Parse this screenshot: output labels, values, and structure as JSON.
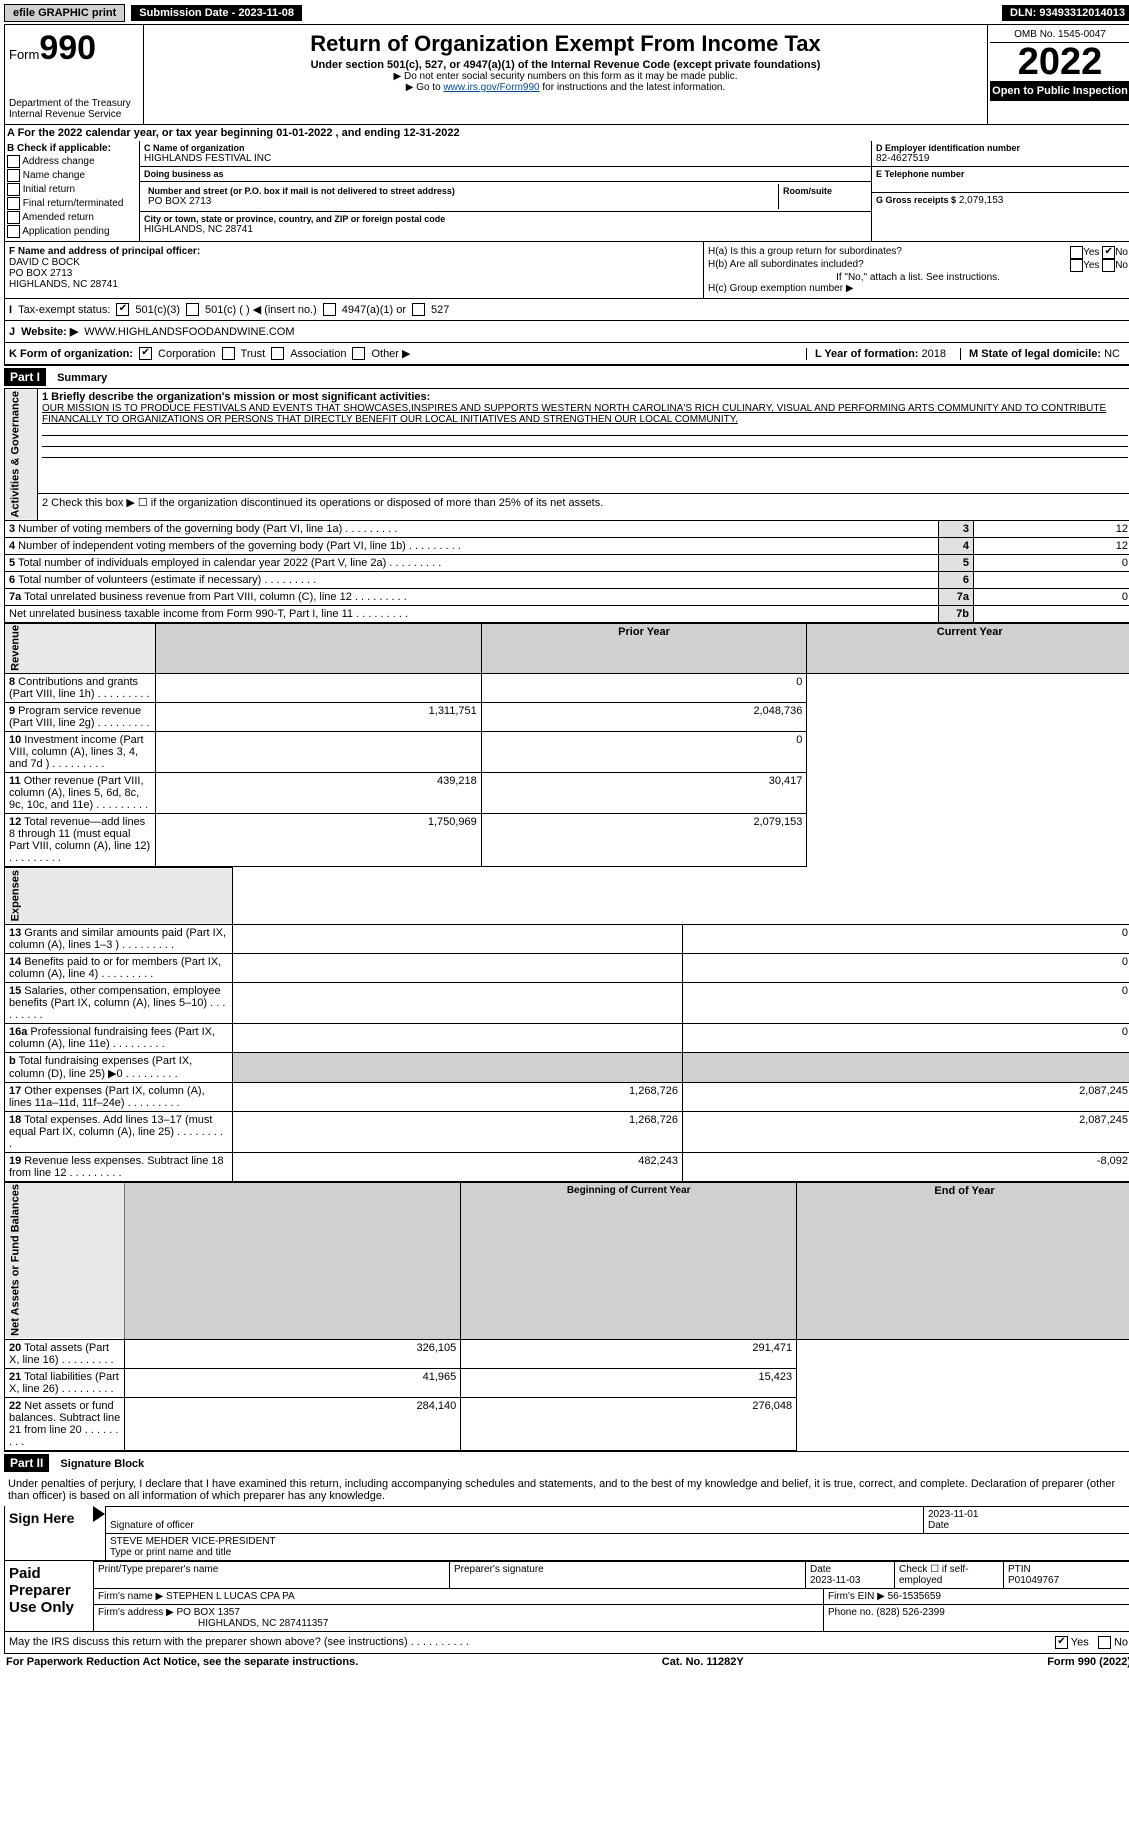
{
  "topbar": {
    "efile": "efile GRAPHIC print",
    "submission": "Submission Date - 2023-11-08",
    "dln": "DLN: 93493312014013"
  },
  "header": {
    "form_prefix": "Form",
    "form_number": "990",
    "title": "Return of Organization Exempt From Income Tax",
    "subtitle": "Under section 501(c), 527, or 4947(a)(1) of the Internal Revenue Code (except private foundations)",
    "note1": "▶ Do not enter social security numbers on this form as it may be made public.",
    "note2_prefix": "▶ Go to ",
    "note2_link": "www.irs.gov/Form990",
    "note2_suffix": " for instructions and the latest information.",
    "dept": "Department of the Treasury",
    "irs": "Internal Revenue Service",
    "omb": "OMB No. 1545-0047",
    "year": "2022",
    "open_public": "Open to Public Inspection"
  },
  "line_a": "A For the 2022 calendar year, or tax year beginning 01-01-2022    , and ending 12-31-2022",
  "section_b": {
    "check_label": "B Check if applicable:",
    "options": [
      "Address change",
      "Name change",
      "Initial return",
      "Final return/terminated",
      "Amended return",
      "Application pending"
    ],
    "c_label": "C Name of organization",
    "c_name": "HIGHLANDS FESTIVAL INC",
    "dba_label": "Doing business as",
    "street_label": "Number and street (or P.O. box if mail is not delivered to street address)",
    "room_label": "Room/suite",
    "street": "PO BOX 2713",
    "city_label": "City or town, state or province, country, and ZIP or foreign postal code",
    "city": "HIGHLANDS, NC  28741",
    "d_label": "D Employer identification number",
    "d_ein": "82-4627519",
    "e_label": "E Telephone number",
    "g_label": "G Gross receipts $",
    "g_val": "2,079,153",
    "f_label": "F  Name and address of principal officer:",
    "f_name": "DAVID C BOCK",
    "f_addr1": "PO BOX 2713",
    "f_addr2": "HIGHLANDS, NC  28741",
    "ha_label": "H(a)  Is this a group return for subordinates?",
    "hb_label": "H(b)  Are all subordinates included?",
    "hb_note": "If \"No,\" attach a list. See instructions.",
    "hc_label": "H(c)  Group exemption number ▶"
  },
  "tax_status": {
    "i_label": "I",
    "label": "Tax-exempt status:",
    "opt1": "501(c)(3)",
    "opt2": "501(c) (   ) ◀ (insert no.)",
    "opt3": "4947(a)(1) or",
    "opt4": "527"
  },
  "website": {
    "j_label": "J",
    "label": "Website: ▶",
    "value": "WWW.HIGHLANDSFOODANDWINE.COM"
  },
  "k_org": {
    "label": "K Form of organization:",
    "opts": [
      "Corporation",
      "Trust",
      "Association",
      "Other ▶"
    ],
    "l_label": "L Year of formation:",
    "l_val": "2018",
    "m_label": "M State of legal domicile:",
    "m_val": "NC"
  },
  "part1": {
    "header": "Part I",
    "title": "Summary",
    "q1_label": "1  Briefly describe the organization's mission or most significant activities:",
    "mission": "OUR MISSION IS TO PRODUCE FESTIVALS AND EVENTS THAT SHOWCASES,INSPIRES AND SUPPORTS WESTERN NORTH CAROLINA'S RICH CULINARY, VISUAL AND PERFORMING ARTS COMMUNITY AND TO CONTRIBUTE FINANCALLY TO ORGANIZATIONS OR PERSONS THAT DIRECTLY BENEFIT OUR LOCAL INITIATIVES AND STRENGTHEN OUR LOCAL COMMUNITY.",
    "q2": "2   Check this box ▶ ☐  if the organization discontinued its operations or disposed of more than 25% of its net assets.",
    "sidebar_gov": "Activities & Governance",
    "sidebar_rev": "Revenue",
    "sidebar_exp": "Expenses",
    "sidebar_net": "Net Assets or Fund Balances",
    "rows_gov": [
      {
        "n": "3",
        "desc": "Number of voting members of the governing body (Part VI, line 1a)",
        "box": "3",
        "val": "12"
      },
      {
        "n": "4",
        "desc": "Number of independent voting members of the governing body (Part VI, line 1b)",
        "box": "4",
        "val": "12"
      },
      {
        "n": "5",
        "desc": "Total number of individuals employed in calendar year 2022 (Part V, line 2a)",
        "box": "5",
        "val": "0"
      },
      {
        "n": "6",
        "desc": "Total number of volunteers (estimate if necessary)",
        "box": "6",
        "val": ""
      },
      {
        "n": "7a",
        "desc": "Total unrelated business revenue from Part VIII, column (C), line 12",
        "box": "7a",
        "val": "0"
      },
      {
        "n": "",
        "desc": "Net unrelated business taxable income from Form 990-T, Part I, line 11",
        "box": "7b",
        "val": ""
      }
    ],
    "col_prior": "Prior Year",
    "col_current": "Current Year",
    "rows_rev": [
      {
        "n": "8",
        "desc": "Contributions and grants (Part VIII, line 1h)",
        "prior": "",
        "cur": "0"
      },
      {
        "n": "9",
        "desc": "Program service revenue (Part VIII, line 2g)",
        "prior": "1,311,751",
        "cur": "2,048,736"
      },
      {
        "n": "10",
        "desc": "Investment income (Part VIII, column (A), lines 3, 4, and 7d )",
        "prior": "",
        "cur": "0"
      },
      {
        "n": "11",
        "desc": "Other revenue (Part VIII, column (A), lines 5, 6d, 8c, 9c, 10c, and 11e)",
        "prior": "439,218",
        "cur": "30,417"
      },
      {
        "n": "12",
        "desc": "Total revenue—add lines 8 through 11 (must equal Part VIII, column (A), line 12)",
        "prior": "1,750,969",
        "cur": "2,079,153"
      }
    ],
    "rows_exp": [
      {
        "n": "13",
        "desc": "Grants and similar amounts paid (Part IX, column (A), lines 1–3 )",
        "prior": "",
        "cur": "0"
      },
      {
        "n": "14",
        "desc": "Benefits paid to or for members (Part IX, column (A), line 4)",
        "prior": "",
        "cur": "0"
      },
      {
        "n": "15",
        "desc": "Salaries, other compensation, employee benefits (Part IX, column (A), lines 5–10)",
        "prior": "",
        "cur": "0"
      },
      {
        "n": "16a",
        "desc": "Professional fundraising fees (Part IX, column (A), line 11e)",
        "prior": "",
        "cur": "0"
      },
      {
        "n": "b",
        "desc": "Total fundraising expenses (Part IX, column (D), line 25) ▶0",
        "prior": "GRAY",
        "cur": "GRAY"
      },
      {
        "n": "17",
        "desc": "Other expenses (Part IX, column (A), lines 11a–11d, 11f–24e)",
        "prior": "1,268,726",
        "cur": "2,087,245"
      },
      {
        "n": "18",
        "desc": "Total expenses. Add lines 13–17 (must equal Part IX, column (A), line 25)",
        "prior": "1,268,726",
        "cur": "2,087,245"
      },
      {
        "n": "19",
        "desc": "Revenue less expenses. Subtract line 18 from line 12",
        "prior": "482,243",
        "cur": "-8,092"
      }
    ],
    "col_begin": "Beginning of Current Year",
    "col_end": "End of Year",
    "rows_net": [
      {
        "n": "20",
        "desc": "Total assets (Part X, line 16)",
        "prior": "326,105",
        "cur": "291,471"
      },
      {
        "n": "21",
        "desc": "Total liabilities (Part X, line 26)",
        "prior": "41,965",
        "cur": "15,423"
      },
      {
        "n": "22",
        "desc": "Net assets or fund balances. Subtract line 21 from line 20",
        "prior": "284,140",
        "cur": "276,048"
      }
    ]
  },
  "part2": {
    "header": "Part II",
    "title": "Signature Block",
    "declaration": "Under penalties of perjury, I declare that I have examined this return, including accompanying schedules and statements, and to the best of my knowledge and belief, it is true, correct, and complete. Declaration of preparer (other than officer) is based on all information of which preparer has any knowledge.",
    "sign_here": "Sign Here",
    "sig_officer": "Signature of officer",
    "sig_date": "2023-11-01",
    "date_label": "Date",
    "officer_name": "STEVE MEHDER  VICE-PRESIDENT",
    "type_label": "Type or print name and title",
    "paid_prep": "Paid Preparer Use Only",
    "prep_name_label": "Print/Type preparer's name",
    "prep_sig_label": "Preparer's signature",
    "prep_date_label": "Date",
    "prep_date": "2023-11-03",
    "check_self": "Check ☐ if self-employed",
    "ptin_label": "PTIN",
    "ptin": "P01049767",
    "firm_name_label": "Firm's name    ▶",
    "firm_name": "STEPHEN L LUCAS CPA PA",
    "firm_ein_label": "Firm's EIN ▶",
    "firm_ein": "56-1535659",
    "firm_addr_label": "Firm's address ▶",
    "firm_addr": "PO BOX 1357",
    "firm_city": "HIGHLANDS, NC  287411357",
    "phone_label": "Phone no.",
    "phone": "(828) 526-2399",
    "discuss": "May the IRS discuss this return with the preparer shown above? (see instructions)",
    "yes": "Yes",
    "no": "No"
  },
  "footer": {
    "left": "For Paperwork Reduction Act Notice, see the separate instructions.",
    "mid": "Cat. No. 11282Y",
    "right": "Form 990 (2022)"
  }
}
